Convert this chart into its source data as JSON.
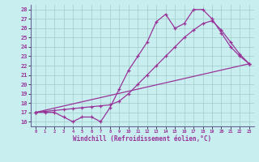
{
  "xlabel": "Windchill (Refroidissement éolien,°C)",
  "bg_color": "#c8eef0",
  "grid_color": "#a0ccc8",
  "line_color": "#993399",
  "spine_color": "#666699",
  "xlim": [
    -0.5,
    23.5
  ],
  "ylim": [
    15.5,
    28.5
  ],
  "yticks": [
    16,
    17,
    18,
    19,
    20,
    21,
    22,
    23,
    24,
    25,
    26,
    27,
    28
  ],
  "xticks": [
    0,
    1,
    2,
    3,
    4,
    5,
    6,
    7,
    8,
    9,
    10,
    11,
    12,
    13,
    14,
    15,
    16,
    17,
    18,
    19,
    20,
    21,
    22,
    23
  ],
  "line1_x": [
    0,
    1,
    2,
    3,
    4,
    5,
    6,
    7,
    8,
    9,
    10,
    11,
    12,
    13,
    14,
    15,
    16,
    17,
    18,
    19,
    20,
    21,
    22,
    23
  ],
  "line1_y": [
    17,
    17,
    17,
    16.5,
    16,
    16.5,
    16.5,
    16,
    17.5,
    19.5,
    21.5,
    23,
    24.5,
    26.7,
    27.5,
    26,
    26.5,
    28,
    28,
    27,
    25.5,
    24,
    23,
    22.2
  ],
  "line2_x": [
    0,
    1,
    2,
    3,
    4,
    5,
    6,
    7,
    8,
    9,
    10,
    11,
    12,
    13,
    14,
    15,
    16,
    17,
    18,
    19,
    20,
    21,
    22,
    23
  ],
  "line2_y": [
    17,
    17.1,
    17.2,
    17.3,
    17.4,
    17.5,
    17.6,
    17.7,
    17.8,
    18.2,
    19.0,
    20.0,
    21.0,
    22.0,
    23.0,
    24.0,
    25.0,
    25.8,
    26.5,
    26.8,
    25.8,
    24.5,
    23.2,
    22.2
  ],
  "line3_x": [
    0,
    23
  ],
  "line3_y": [
    17,
    22.2
  ]
}
